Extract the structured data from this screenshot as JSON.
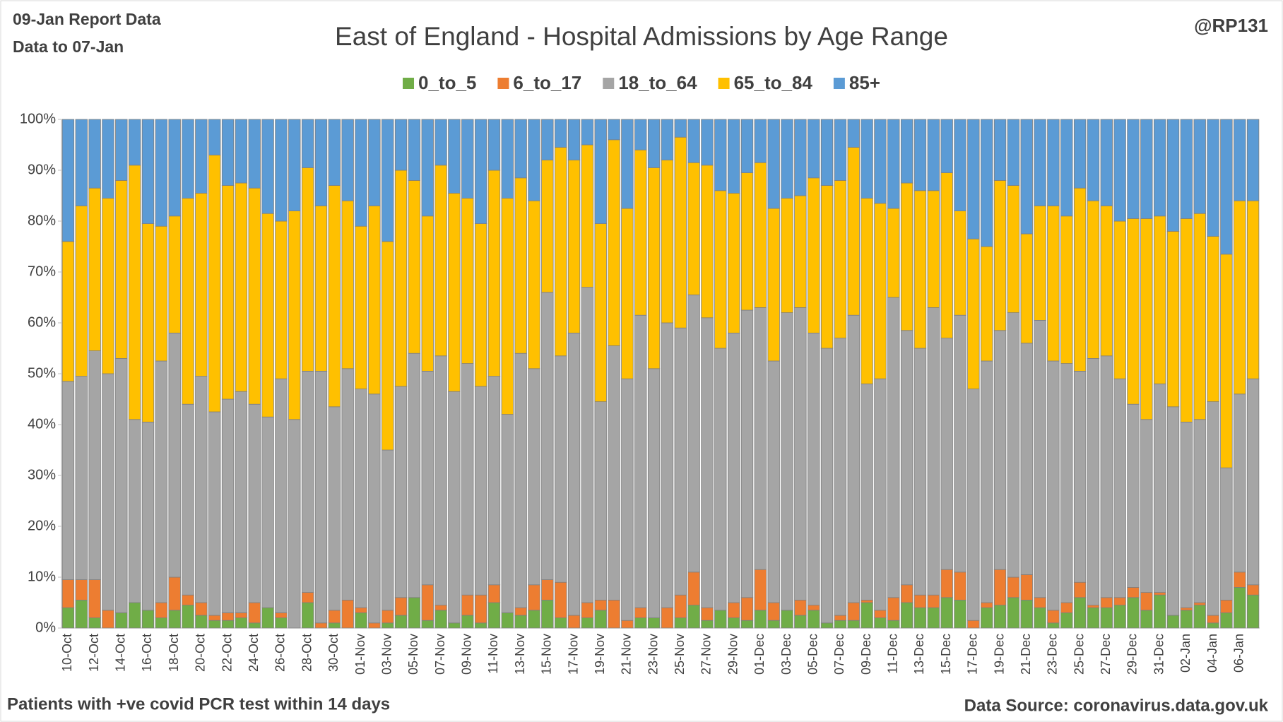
{
  "chart_data": {
    "type": "stacked_bar_percent",
    "title": "East of England - Hospital Admissions by Age Range",
    "report_note": "09-Jan Report Data",
    "data_note": "Data to 07-Jan",
    "author": "@RP131",
    "footnote": "Patients with  +ve covid PCR test within 14 days",
    "source": "Data Source: coronavirus.data.gov.uk",
    "categories": [
      "10-Oct",
      null,
      "12-Oct",
      null,
      "14-Oct",
      null,
      "16-Oct",
      null,
      "18-Oct",
      null,
      "20-Oct",
      null,
      "22-Oct",
      null,
      "24-Oct",
      null,
      "26-Oct",
      null,
      "28-Oct",
      null,
      "30-Oct",
      null,
      "01-Nov",
      null,
      "03-Nov",
      null,
      "05-Nov",
      null,
      "07-Nov",
      null,
      "09-Nov",
      null,
      "11-Nov",
      null,
      "13-Nov",
      null,
      "15-Nov",
      null,
      "17-Nov",
      null,
      "19-Nov",
      null,
      "21-Nov",
      null,
      "23-Nov",
      null,
      "25-Nov",
      null,
      "27-Nov",
      null,
      "29-Nov",
      null,
      "01-Dec",
      null,
      "03-Dec",
      null,
      "05-Dec",
      null,
      "07-Dec",
      null,
      "09-Dec",
      null,
      "11-Dec",
      null,
      "13-Dec",
      null,
      "15-Dec",
      null,
      "17-Dec",
      null,
      "19-Dec",
      null,
      "21-Dec",
      null,
      "23-Dec",
      null,
      "25-Dec",
      null,
      "27-Dec",
      null,
      "29-Dec",
      null,
      "31-Dec",
      null,
      "02-Jan",
      null,
      "04-Jan",
      null,
      "06-Jan",
      null
    ],
    "series": [
      {
        "name": "0_to_5",
        "color": "#70ad47",
        "values": [
          4,
          5.5,
          2,
          0,
          3,
          5,
          3.5,
          2,
          3.5,
          4.5,
          2.5,
          1.5,
          1.5,
          2,
          1,
          4,
          2,
          0,
          5,
          0,
          1,
          0,
          3,
          0,
          1,
          2.5,
          6,
          1.5,
          3.5,
          1,
          2.5,
          1,
          5,
          3,
          2.5,
          3.5,
          5.5,
          2,
          0,
          2,
          3.5,
          0,
          0,
          2,
          2,
          0,
          2,
          4.5,
          1.5,
          3.5,
          2,
          1.5,
          3.5,
          1.5,
          3.5,
          2.5,
          3.5,
          1,
          1.5,
          1.5,
          5,
          2,
          1.5,
          5,
          4,
          4,
          6,
          5.5,
          0,
          4,
          4.5,
          6,
          5.5,
          4,
          1,
          3,
          6,
          4,
          4,
          4.5,
          6,
          3.5,
          6.5,
          2.5,
          3.5,
          4.5,
          1,
          3,
          8,
          6.5
        ]
      },
      {
        "name": "6_to_17",
        "color": "#ed7d31",
        "values": [
          5.5,
          4,
          7.5,
          3.5,
          0,
          0,
          0,
          3,
          6.5,
          2,
          2.5,
          1,
          1.5,
          1,
          4,
          0,
          1,
          0,
          2,
          1,
          2.5,
          5.5,
          1,
          1,
          2.5,
          3.5,
          0,
          7,
          1,
          0,
          4,
          5.5,
          3.5,
          0,
          1.5,
          5,
          4,
          7,
          2.5,
          3,
          2,
          5.5,
          1.5,
          2,
          0,
          4,
          4.5,
          6.5,
          2.5,
          0,
          3,
          4.5,
          8,
          3.5,
          0,
          3,
          1,
          0,
          1,
          3.5,
          0.5,
          1.5,
          4.5,
          3.5,
          2.5,
          2.5,
          5.5,
          5.5,
          1.5,
          1,
          7,
          4,
          5,
          2,
          2.5,
          2,
          3,
          0.5,
          2,
          1.5,
          2,
          3.5,
          0.5,
          0,
          0.5,
          0.5,
          1.5,
          2.5,
          3,
          2
        ]
      },
      {
        "name": "18_to_64",
        "color": "#a5a5a5",
        "values": [
          39,
          40,
          45,
          46.5,
          50,
          36,
          37,
          47.5,
          48,
          37.5,
          44.5,
          40,
          42,
          43.5,
          39,
          37.5,
          46,
          41,
          43.5,
          49.5,
          40,
          45.5,
          43,
          45,
          31.5,
          41.5,
          48,
          42,
          49,
          45.5,
          45.5,
          41,
          41,
          39,
          50,
          42.5,
          56.5,
          44.5,
          55.5,
          62,
          39,
          50,
          47.5,
          57.5,
          49,
          56,
          52.5,
          54.5,
          57,
          51.5,
          53,
          56.5,
          51.5,
          47.5,
          58.5,
          57.5,
          53.5,
          54,
          54.5,
          56.5,
          42.5,
          45.5,
          59,
          50,
          48.5,
          56.5,
          45.5,
          50.5,
          45.5,
          47.5,
          47,
          52,
          45.5,
          54.5,
          49,
          47,
          41.5,
          48.5,
          47.5,
          43,
          36,
          34,
          41,
          41,
          36.5,
          36,
          42,
          26,
          35,
          40.5
        ]
      },
      {
        "name": "65_to_84",
        "color": "#ffc000",
        "values": [
          27.5,
          33.5,
          32,
          34.5,
          35,
          50,
          39,
          26.5,
          23,
          40.5,
          36,
          50.5,
          42,
          41,
          42.5,
          40,
          31,
          41,
          40,
          32.5,
          43.5,
          33,
          32,
          37,
          41,
          42.5,
          34,
          30.5,
          37.5,
          39,
          32.5,
          32,
          40.5,
          42.5,
          34.5,
          33,
          26,
          41,
          34,
          28,
          35,
          40.5,
          33.5,
          32.5,
          39.5,
          32,
          37.5,
          26,
          30,
          31,
          27.5,
          27,
          28.5,
          30,
          22.5,
          22,
          30.5,
          32,
          31,
          33,
          36.5,
          34.5,
          17.5,
          29,
          31,
          23,
          32.5,
          20.5,
          29.5,
          22.5,
          29.5,
          25,
          21.5,
          22.5,
          30.5,
          29,
          36,
          31,
          29.5,
          31,
          36.5,
          39.5,
          33,
          34.5,
          40,
          40.5,
          32.5,
          42,
          38,
          35
        ]
      },
      {
        "name": "85+",
        "color": "#5b9bd5",
        "values": [
          24,
          17,
          13.5,
          15.5,
          12,
          9,
          20.5,
          21,
          19,
          15.5,
          14.5,
          7,
          13,
          12.5,
          13.5,
          18.5,
          20,
          18,
          9.5,
          17,
          13,
          16,
          21,
          17,
          24,
          10,
          12,
          19,
          9,
          14.5,
          15.5,
          20.5,
          10,
          15.5,
          11.5,
          16,
          8,
          5.5,
          8,
          5,
          20.5,
          4,
          17.5,
          6,
          9.5,
          8,
          3.5,
          8.5,
          9,
          14,
          14.5,
          10.5,
          8.5,
          17.5,
          15.5,
          15,
          11.5,
          13,
          12,
          5.5,
          15.5,
          16.5,
          17.5,
          12.5,
          14,
          14,
          10.5,
          18,
          23.5,
          25,
          12,
          13,
          22.5,
          17,
          17,
          19,
          13.5,
          16,
          17,
          20,
          19.5,
          19.5,
          19,
          22,
          19.5,
          18.5,
          23,
          26.5,
          16,
          16
        ]
      }
    ],
    "ylim": [
      0,
      100
    ],
    "yticks": [
      {
        "value": 0,
        "label": "0%"
      },
      {
        "value": 10,
        "label": "10%"
      },
      {
        "value": 20,
        "label": "20%"
      },
      {
        "value": 30,
        "label": "30%"
      },
      {
        "value": 40,
        "label": "40%"
      },
      {
        "value": 50,
        "label": "50%"
      },
      {
        "value": 60,
        "label": "60%"
      },
      {
        "value": 70,
        "label": "70%"
      },
      {
        "value": 80,
        "label": "80%"
      },
      {
        "value": 90,
        "label": "90%"
      },
      {
        "value": 100,
        "label": "100%"
      }
    ],
    "grid": false,
    "legend": "top"
  }
}
